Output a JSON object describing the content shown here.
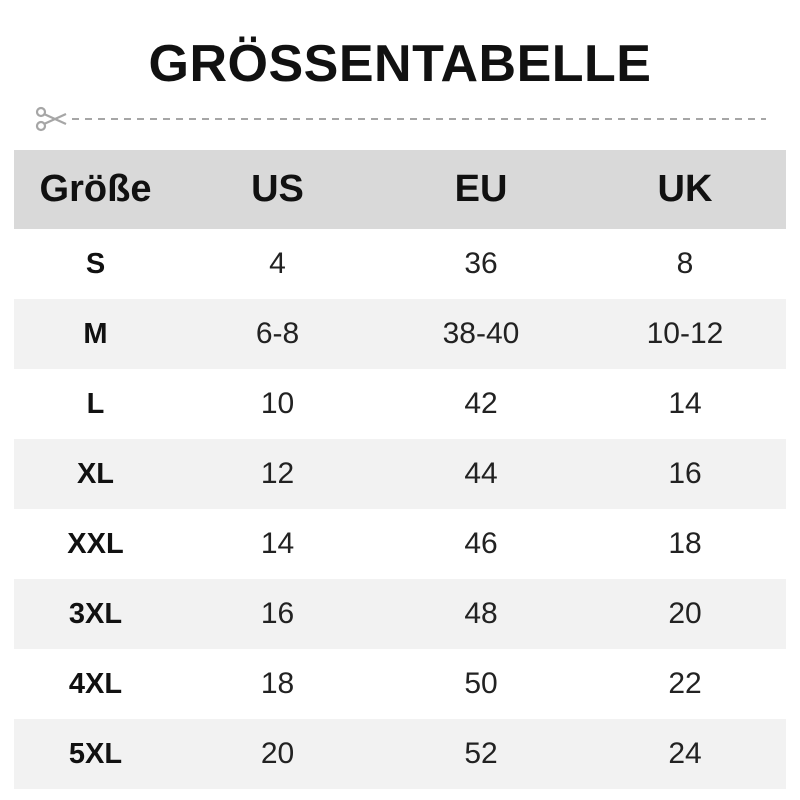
{
  "title": "GRÖSSENTABELLE",
  "cut_icon": "scissors-icon",
  "colors": {
    "header_bg": "#d9d9d9",
    "alt_row_bg": "#f2f2f2",
    "cutline": "#a6a6a6"
  },
  "table": {
    "headers": [
      "Größe",
      "US",
      "EU",
      "UK"
    ],
    "rows": [
      [
        "S",
        "4",
        "36",
        "8"
      ],
      [
        "M",
        "6-8",
        "38-40",
        "10-12"
      ],
      [
        "L",
        "10",
        "42",
        "14"
      ],
      [
        "XL",
        "12",
        "44",
        "16"
      ],
      [
        "XXL",
        "14",
        "46",
        "18"
      ],
      [
        "3XL",
        "16",
        "48",
        "20"
      ],
      [
        "4XL",
        "18",
        "50",
        "22"
      ],
      [
        "5XL",
        "20",
        "52",
        "24"
      ]
    ]
  }
}
